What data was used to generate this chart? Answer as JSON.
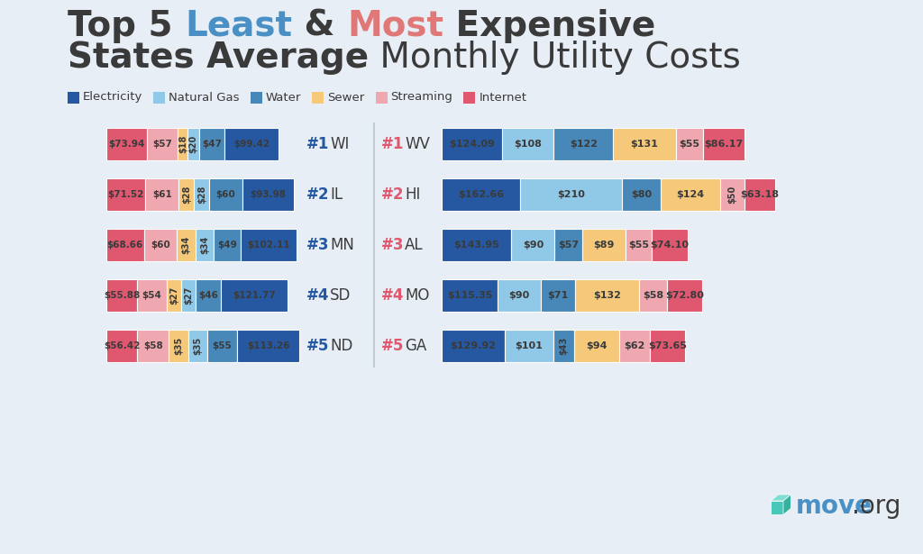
{
  "bg_color": "#e8eef5",
  "legend": [
    {
      "label": "Electricity",
      "color": "#2558a0"
    },
    {
      "label": "Natural Gas",
      "color": "#90c8e8"
    },
    {
      "label": "Water",
      "color": "#4888b8"
    },
    {
      "label": "Sewer",
      "color": "#f5c87a"
    },
    {
      "label": "Streaming",
      "color": "#f0a8b0"
    },
    {
      "label": "Internet",
      "color": "#e05870"
    }
  ],
  "least_states": [
    {
      "rank": "#1",
      "state": "WI",
      "values": [
        73.94,
        57,
        18,
        20,
        47,
        99.42
      ],
      "labels": [
        "$73.94",
        "$57",
        "$18",
        "$20",
        "$47",
        "$99.42"
      ],
      "colors": [
        "#e05870",
        "#f0a8b0",
        "#f5c87a",
        "#90c8e8",
        "#4888b8",
        "#2558a0"
      ]
    },
    {
      "rank": "#2",
      "state": "IL",
      "values": [
        71.52,
        61,
        28,
        28,
        60,
        93.98
      ],
      "labels": [
        "$71.52",
        "$61",
        "$28",
        "$28",
        "$60",
        "$93.98"
      ],
      "colors": [
        "#e05870",
        "#f0a8b0",
        "#f5c87a",
        "#90c8e8",
        "#4888b8",
        "#2558a0"
      ]
    },
    {
      "rank": "#3",
      "state": "MN",
      "values": [
        68.66,
        60,
        34,
        34,
        49,
        102.11
      ],
      "labels": [
        "$68.66",
        "$60",
        "$34",
        "$34",
        "$49",
        "$102.11"
      ],
      "colors": [
        "#e05870",
        "#f0a8b0",
        "#f5c87a",
        "#90c8e8",
        "#4888b8",
        "#2558a0"
      ]
    },
    {
      "rank": "#4",
      "state": "SD",
      "values": [
        55.88,
        54,
        27,
        27,
        46,
        121.77
      ],
      "labels": [
        "$55.88",
        "$54",
        "$27",
        "$27",
        "$46",
        "$121.77"
      ],
      "colors": [
        "#e05870",
        "#f0a8b0",
        "#f5c87a",
        "#90c8e8",
        "#4888b8",
        "#2558a0"
      ]
    },
    {
      "rank": "#5",
      "state": "ND",
      "values": [
        56.42,
        58,
        35,
        35,
        55,
        113.26
      ],
      "labels": [
        "$56.42",
        "$58",
        "$35",
        "$35",
        "$55",
        "$113.26"
      ],
      "colors": [
        "#e05870",
        "#f0a8b0",
        "#f5c87a",
        "#90c8e8",
        "#4888b8",
        "#2558a0"
      ]
    }
  ],
  "most_states": [
    {
      "rank": "#1",
      "state": "WV",
      "values": [
        124.09,
        108,
        122,
        131,
        55,
        86.17
      ],
      "labels": [
        "$124.09",
        "$108",
        "$122",
        "$131",
        "$55",
        "$86.17"
      ],
      "colors": [
        "#2558a0",
        "#90c8e8",
        "#4888b8",
        "#f5c87a",
        "#f0a8b0",
        "#e05870"
      ]
    },
    {
      "rank": "#2",
      "state": "HI",
      "values": [
        162.66,
        210,
        80,
        124,
        50,
        63.18
      ],
      "labels": [
        "$162.66",
        "$210",
        "$80",
        "$124",
        "$50",
        "$63.18"
      ],
      "colors": [
        "#2558a0",
        "#90c8e8",
        "#4888b8",
        "#f5c87a",
        "#f0a8b0",
        "#e05870"
      ]
    },
    {
      "rank": "#3",
      "state": "AL",
      "values": [
        143.95,
        90,
        57,
        89,
        55,
        74.1
      ],
      "labels": [
        "$143.95",
        "$90",
        "$57",
        "$89",
        "$55",
        "$74.10"
      ],
      "colors": [
        "#2558a0",
        "#90c8e8",
        "#4888b8",
        "#f5c87a",
        "#f0a8b0",
        "#e05870"
      ]
    },
    {
      "rank": "#4",
      "state": "MO",
      "values": [
        115.35,
        90,
        71,
        132,
        58,
        72.8
      ],
      "labels": [
        "$115.35",
        "$90",
        "$71",
        "$132",
        "$58",
        "$72.80"
      ],
      "colors": [
        "#2558a0",
        "#90c8e8",
        "#4888b8",
        "#f5c87a",
        "#f0a8b0",
        "#e05870"
      ]
    },
    {
      "rank": "#5",
      "state": "GA",
      "values": [
        129.92,
        101,
        43,
        94,
        62,
        73.65
      ],
      "labels": [
        "$129.92",
        "$101",
        "$43",
        "$94",
        "$62",
        "$73.65"
      ],
      "colors": [
        "#2558a0",
        "#90c8e8",
        "#4888b8",
        "#f5c87a",
        "#f0a8b0",
        "#e05870"
      ]
    }
  ],
  "rank_color_least": "#2558a0",
  "rank_color_most": "#e05870",
  "state_color": "#3d3d3d",
  "divider_color": "#b0bec8",
  "label_text_color": "#4a5568"
}
